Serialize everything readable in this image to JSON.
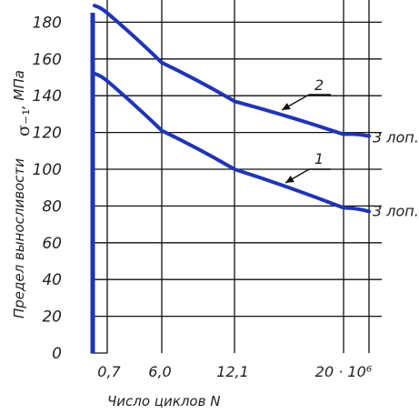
{
  "chart_data": {
    "type": "line",
    "x_ticks": [
      "0,7",
      "6,0",
      "12,1",
      "20 · 10⁶"
    ],
    "y_ticks": [
      "0",
      "20",
      "40",
      "60",
      "80",
      "100",
      "120",
      "140",
      "160",
      "180"
    ],
    "ylim": [
      0,
      190
    ],
    "ylabel_text": "Предел выносливости",
    "ylabel_symbol": "σ₋₁",
    "ylabel_unit": ", МПа",
    "xlabel": "Число циклов N",
    "series": [
      {
        "name": "1",
        "end_label": "3 лоп.",
        "color": "#1f35b5",
        "x": [
          0,
          1,
          2,
          3
        ],
        "y": [
          148,
          121,
          100,
          79
        ]
      },
      {
        "name": "2",
        "end_label": "3 лоп.",
        "color": "#1f35b5",
        "x": [
          0,
          1,
          2,
          3
        ],
        "y": [
          185,
          158,
          137,
          119
        ]
      }
    ]
  }
}
